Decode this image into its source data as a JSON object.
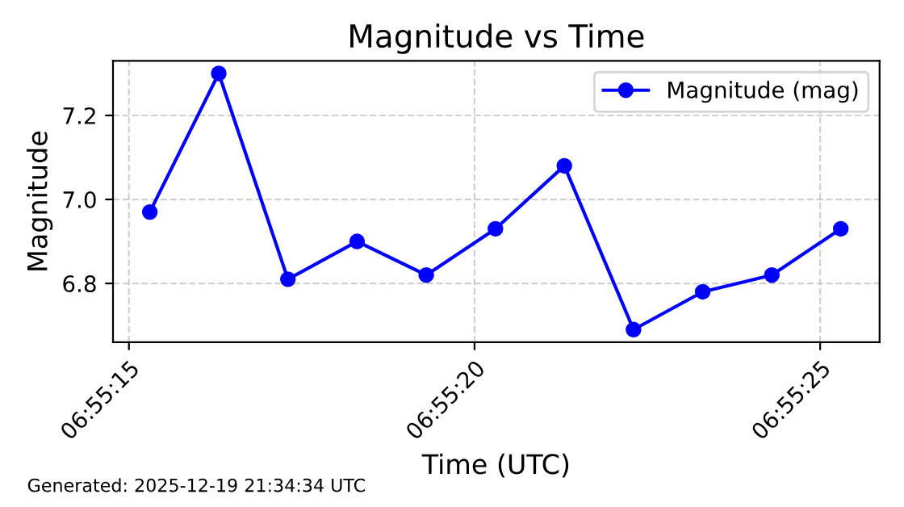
{
  "chart_data": {
    "type": "line",
    "title": "Magnitude vs Time",
    "xlabel": "Time (UTC)",
    "ylabel": "Magnitude",
    "x": [
      6.920917,
      6.921194,
      6.921472,
      6.92175,
      6.922028,
      6.922306,
      6.922583,
      6.922861,
      6.923139,
      6.923417,
      6.923694
    ],
    "series": [
      {
        "name": "Magnitude (mag)",
        "color": "#0000ff",
        "values": [
          6.97,
          7.3,
          6.81,
          6.9,
          6.82,
          6.93,
          7.08,
          6.69,
          6.78,
          6.82,
          6.93
        ]
      }
    ],
    "xlim": [
      6.920769,
      6.92385
    ],
    "ylim": [
      6.66,
      7.33
    ],
    "xticks": [
      {
        "value": 6.920833,
        "label": "06:55:15"
      },
      {
        "value": 6.922222,
        "label": "06:55:20"
      },
      {
        "value": 6.923611,
        "label": "06:55:25"
      }
    ],
    "yticks": [
      {
        "value": 6.8,
        "label": "6.8"
      },
      {
        "value": 7.0,
        "label": "7.0"
      },
      {
        "value": 7.2,
        "label": "7.2"
      }
    ],
    "grid": true,
    "legend": "top right",
    "marker": "circle",
    "line_style": "solid",
    "annotations": [
      "Generated: 2025-12-19 21:34:34 UTC"
    ]
  }
}
